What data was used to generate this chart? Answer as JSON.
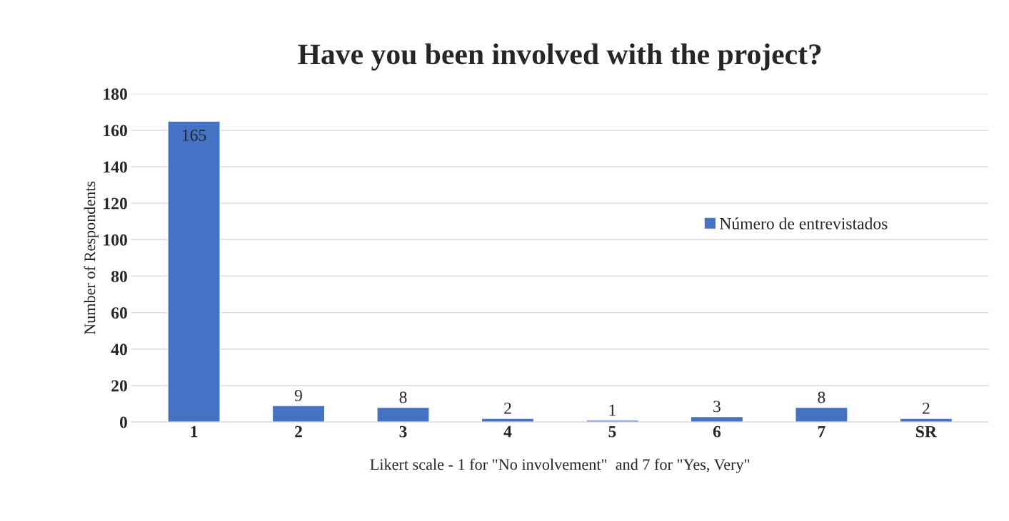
{
  "chart_data": {
    "type": "bar",
    "title": "Have you been involved with the project?",
    "xlabel": "Likert scale - 1 for \"No involvement\"  and 7 for \"Yes, Very\"",
    "ylabel": "Number of Respondents",
    "categories": [
      "1",
      "2",
      "3",
      "4",
      "5",
      "6",
      "7",
      "SR"
    ],
    "series": [
      {
        "name": "Número de entrevistados",
        "color": "#4472c4",
        "values": [
          165,
          9,
          8,
          2,
          1,
          3,
          8,
          2
        ]
      }
    ],
    "ylim": [
      0,
      180
    ],
    "yticks": [
      0,
      20,
      40,
      60,
      80,
      100,
      120,
      140,
      160,
      180
    ],
    "grid": "y",
    "legend": "right",
    "data_labels": true
  }
}
